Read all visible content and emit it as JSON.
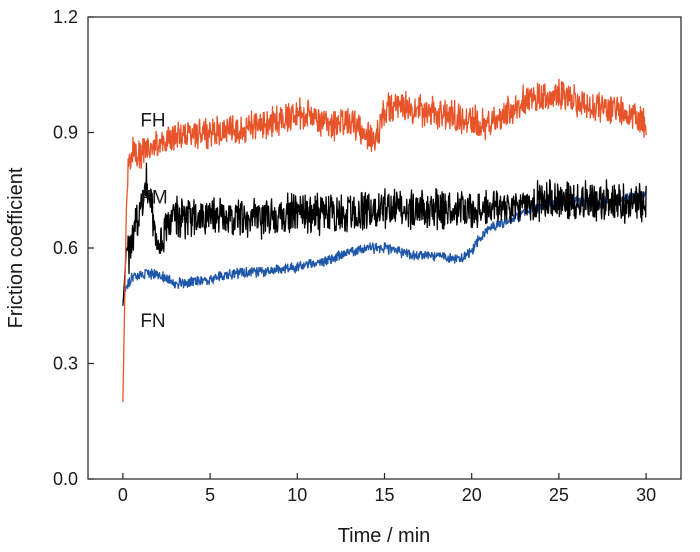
{
  "chart_data": {
    "type": "line",
    "xlabel": "Time / min",
    "ylabel": "Friction coefficient",
    "xlim": [
      -2,
      32
    ],
    "ylim": [
      0,
      1.2
    ],
    "xticks": [
      0,
      5,
      10,
      15,
      20,
      25,
      30
    ],
    "yticks": [
      0.0,
      0.3,
      0.6,
      0.9,
      1.2
    ],
    "xtick_labels": [
      "0",
      "5",
      "10",
      "15",
      "20",
      "25",
      "30"
    ],
    "ytick_labels": [
      "0.0",
      "0.3",
      "0.6",
      "0.9",
      "1.2"
    ],
    "grid": false,
    "legend": "none",
    "series": [
      {
        "name": "FH",
        "color": "#e8542a",
        "noise": 0.035,
        "x": [
          0,
          0.1,
          0.2,
          0.3,
          0.5,
          0.7,
          1,
          1.5,
          2,
          3,
          4,
          5,
          6,
          7,
          8,
          9,
          10,
          11,
          12,
          13,
          14,
          14.5,
          15,
          16,
          17,
          18,
          19,
          20,
          21,
          22,
          23,
          24,
          25,
          26,
          27,
          28,
          29,
          30
        ],
        "y": [
          0.2,
          0.45,
          0.7,
          0.8,
          0.85,
          0.86,
          0.84,
          0.86,
          0.87,
          0.89,
          0.9,
          0.9,
          0.91,
          0.91,
          0.92,
          0.93,
          0.95,
          0.94,
          0.92,
          0.93,
          0.9,
          0.88,
          0.96,
          0.97,
          0.96,
          0.95,
          0.94,
          0.93,
          0.92,
          0.95,
          0.98,
          0.99,
          1.0,
          0.98,
          0.97,
          0.96,
          0.95,
          0.93
        ]
      },
      {
        "name": "FM",
        "color": "#000000",
        "noise": 0.045,
        "x": [
          0,
          0.1,
          0.2,
          0.4,
          0.7,
          1,
          1.3,
          1.6,
          2,
          2.5,
          3,
          4,
          5,
          6,
          8,
          10,
          12,
          14,
          16,
          18,
          20,
          22,
          24,
          26,
          28,
          30
        ],
        "y": [
          0.45,
          0.52,
          0.6,
          0.58,
          0.66,
          0.7,
          0.78,
          0.72,
          0.6,
          0.65,
          0.68,
          0.68,
          0.68,
          0.68,
          0.68,
          0.69,
          0.69,
          0.7,
          0.7,
          0.7,
          0.7,
          0.71,
          0.72,
          0.72,
          0.72,
          0.72
        ]
      },
      {
        "name": "FN",
        "color": "#1e56a8",
        "noise": 0.012,
        "x": [
          0,
          0.1,
          0.2,
          0.5,
          1,
          2,
          3,
          4,
          5,
          6,
          8,
          10,
          12,
          13,
          14,
          15,
          16,
          17,
          18,
          19,
          20,
          20.5,
          21,
          22,
          23,
          24,
          25,
          26,
          27,
          28,
          29,
          30
        ],
        "y": [
          0.46,
          0.48,
          0.5,
          0.52,
          0.53,
          0.53,
          0.51,
          0.51,
          0.52,
          0.53,
          0.54,
          0.55,
          0.57,
          0.59,
          0.6,
          0.6,
          0.59,
          0.58,
          0.58,
          0.57,
          0.59,
          0.63,
          0.65,
          0.67,
          0.69,
          0.71,
          0.72,
          0.72,
          0.72,
          0.72,
          0.73,
          0.74
        ]
      }
    ]
  }
}
